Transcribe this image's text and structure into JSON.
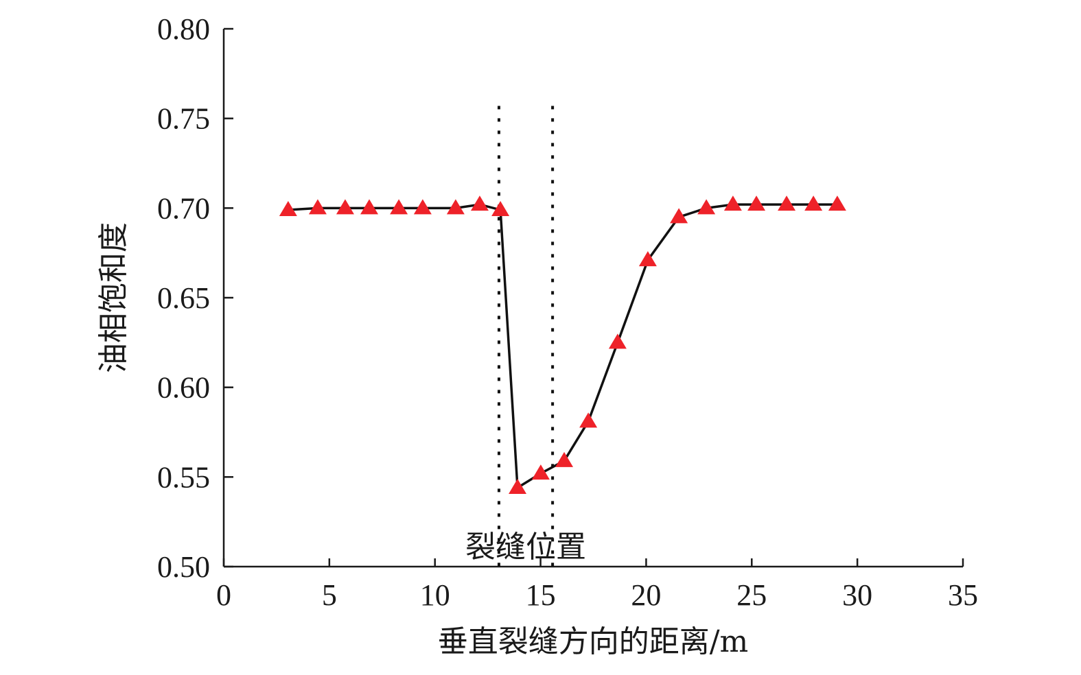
{
  "chart_data": {
    "type": "line",
    "title": "",
    "xlabel": "垂直裂缝方向的距离/m",
    "ylabel": "油相饱和度",
    "xlim": [
      0,
      35
    ],
    "ylim": [
      0.5,
      0.8
    ],
    "xticks": [
      "0",
      "5",
      "10",
      "15",
      "20",
      "25",
      "30",
      "35"
    ],
    "yticks": [
      "0.50",
      "0.55",
      "0.60",
      "0.65",
      "0.70",
      "0.75",
      "0.80"
    ],
    "grid": false,
    "series": [
      {
        "name": "油相饱和度",
        "color": "#ee2229",
        "line_color": "#111111",
        "marker": "triangle",
        "x": [
          3.05,
          4.45,
          5.75,
          6.89,
          8.29,
          9.42,
          10.98,
          12.12,
          13.1,
          13.91,
          15.01,
          16.12,
          17.26,
          18.65,
          20.08,
          21.55,
          22.85,
          24.11,
          25.22,
          26.65,
          27.92,
          29.05
        ],
        "y": [
          0.699,
          0.7,
          0.7,
          0.7,
          0.7,
          0.7,
          0.7,
          0.702,
          0.699,
          0.544,
          0.552,
          0.559,
          0.581,
          0.625,
          0.671,
          0.695,
          0.7,
          0.702,
          0.702,
          0.702,
          0.702,
          0.702
        ]
      }
    ],
    "annotations": {
      "fracture_label": "裂缝位置",
      "fracture_bounds": [
        13.03,
        15.57
      ],
      "fracture_top": 0.757
    }
  }
}
